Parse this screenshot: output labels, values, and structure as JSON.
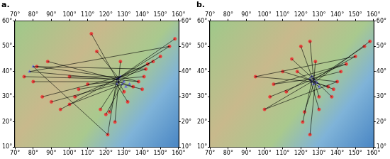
{
  "chart_data": [
    {
      "type": "scatter",
      "title": "a.",
      "grid": false,
      "xlim": [
        70,
        160
      ],
      "xticks": [
        {
          "value": 70,
          "label": "70°"
        },
        {
          "value": 80,
          "label": "80°"
        },
        {
          "value": 90,
          "label": "90°"
        },
        {
          "value": 100,
          "label": "100°"
        },
        {
          "value": 110,
          "label": "110°"
        },
        {
          "value": 120,
          "label": "120°"
        },
        {
          "value": 130,
          "label": "130°"
        },
        {
          "value": 140,
          "label": "140°"
        },
        {
          "value": 150,
          "label": "150°"
        },
        {
          "value": 160,
          "label": "160°"
        }
      ],
      "ylim": [
        10,
        60
      ],
      "yticks": [
        {
          "value": 10,
          "label": "10°"
        },
        {
          "value": 20,
          "label": "20°"
        },
        {
          "value": 30,
          "label": "30°"
        },
        {
          "value": 40,
          "label": "40°"
        },
        {
          "value": 50,
          "label": "50°"
        },
        {
          "value": 60,
          "label": "60°"
        }
      ],
      "series": [
        {
          "type": "line",
          "color": "#000000",
          "marker": "none",
          "line_style": "solid",
          "x": [
            75,
            126,
            null,
            80,
            127,
            null,
            85,
            128,
            null,
            90,
            126,
            null,
            95,
            127,
            null,
            100,
            129,
            null,
            103,
            126,
            null,
            105,
            130,
            null,
            110,
            127,
            null,
            100,
            128,
            null,
            88,
            126,
            null,
            82,
            127,
            null,
            117,
            126,
            null,
            120,
            129,
            null,
            122,
            127,
            null,
            130,
            126,
            null,
            135,
            127,
            null,
            138,
            128,
            null,
            141,
            126,
            null,
            142,
            127,
            null,
            143,
            128,
            null,
            146,
            126,
            null,
            150,
            127,
            null,
            155,
            126,
            null,
            158,
            128,
            null,
            140,
            129,
            null,
            132,
            126,
            null,
            125,
            127,
            null,
            121,
            126,
            null,
            115,
            127,
            null,
            112,
            126,
            null,
            128,
            127,
            null,
            80,
            142,
            null,
            78,
            138,
            null,
            80,
            121,
            null,
            78,
            155
          ],
          "values": [
            38,
            37,
            null,
            36,
            36,
            null,
            30,
            38,
            null,
            28,
            35,
            null,
            25,
            37.5,
            null,
            27,
            35,
            null,
            30,
            37,
            null,
            33,
            36,
            null,
            35,
            36,
            null,
            38,
            38,
            null,
            44,
            37,
            null,
            42,
            37.5,
            null,
            25,
            35,
            null,
            23,
            35,
            null,
            24,
            36,
            null,
            32,
            37,
            null,
            34,
            36,
            null,
            36,
            38,
            null,
            38,
            37,
            null,
            41,
            37.5,
            null,
            43,
            38,
            null,
            44,
            37,
            null,
            46,
            36,
            null,
            50,
            37,
            null,
            53,
            38,
            null,
            33,
            35,
            null,
            28,
            35,
            null,
            20,
            36,
            null,
            15,
            37,
            null,
            48,
            37.5,
            null,
            55,
            37,
            null,
            44,
            36,
            null,
            42,
            41,
            null,
            40,
            36,
            null,
            42,
            15,
            null,
            40,
            50
          ]
        },
        {
          "type": "scatter",
          "color": "#e8413c",
          "marker": "circle",
          "x": [
            75,
            80,
            85,
            90,
            95,
            100,
            103,
            105,
            110,
            100,
            88,
            82,
            117,
            120,
            122,
            130,
            135,
            138,
            141,
            142,
            143,
            146,
            150,
            155,
            158,
            140,
            132,
            125,
            121,
            115,
            112,
            128
          ],
          "values": [
            38,
            36,
            30,
            28,
            25,
            27,
            30,
            33,
            35,
            38,
            44,
            42,
            25,
            23,
            24,
            32,
            34,
            36,
            38,
            41,
            43,
            44,
            46,
            50,
            53,
            33,
            28,
            20,
            15,
            48,
            55,
            44
          ]
        },
        {
          "type": "scatter",
          "color": "#6a6ae0",
          "marker": "triangle",
          "x": [
            80,
            78,
            126,
            127,
            128,
            129,
            126,
            127,
            130,
            131,
            133
          ],
          "values": [
            42,
            40,
            37,
            36,
            38,
            35,
            35,
            37.5,
            36,
            34,
            35
          ]
        }
      ]
    },
    {
      "type": "scatter",
      "title": "b.",
      "grid": false,
      "xlim": [
        70,
        160
      ],
      "xticks": [
        {
          "value": 70,
          "label": "70°"
        },
        {
          "value": 80,
          "label": "80°"
        },
        {
          "value": 90,
          "label": "90°"
        },
        {
          "value": 100,
          "label": "100°"
        },
        {
          "value": 110,
          "label": "110°"
        },
        {
          "value": 120,
          "label": "120°"
        },
        {
          "value": 130,
          "label": "130°"
        },
        {
          "value": 140,
          "label": "140°"
        },
        {
          "value": 150,
          "label": "150°"
        },
        {
          "value": 160,
          "label": "160°"
        }
      ],
      "ylim": [
        10,
        60
      ],
      "yticks": [
        {
          "value": 10,
          "label": "10°"
        },
        {
          "value": 20,
          "label": "20°"
        },
        {
          "value": 30,
          "label": "30°"
        },
        {
          "value": 40,
          "label": "40°"
        },
        {
          "value": 50,
          "label": "50°"
        },
        {
          "value": 60,
          "label": "60°"
        }
      ],
      "series": [
        {
          "type": "line",
          "color": "#000000",
          "marker": "none",
          "line_style": "solid",
          "x": [
            100,
            126,
            null,
            103,
            127,
            null,
            105,
            125,
            null,
            110,
            128,
            null,
            115,
            127,
            null,
            120,
            126,
            null,
            125,
            127,
            null,
            95,
            126,
            null,
            122,
            127,
            null,
            121,
            126,
            null,
            125,
            128,
            null,
            130,
            127,
            null,
            135,
            126,
            null,
            140,
            127,
            null,
            142,
            125,
            null,
            145,
            126,
            null,
            150,
            127,
            null,
            155,
            126,
            null,
            158,
            128,
            null,
            138,
            129,
            null,
            128,
            127,
            null,
            118,
            130,
            null,
            112,
            126,
            null,
            130,
            125,
            null,
            137,
            127,
            null,
            100,
            140,
            null,
            105,
            145,
            null,
            95,
            150
          ],
          "values": [
            25,
            36,
            null,
            30,
            37,
            null,
            35,
            37,
            null,
            40,
            36,
            null,
            45,
            37,
            null,
            50,
            38,
            null,
            52,
            37,
            null,
            38,
            36,
            null,
            24,
            35,
            null,
            20,
            36,
            null,
            15,
            36,
            null,
            30,
            37,
            null,
            34,
            36,
            null,
            36,
            37,
            null,
            40,
            37,
            null,
            43,
            38,
            null,
            46,
            37,
            null,
            50,
            36,
            null,
            52,
            36,
            null,
            33,
            35.5,
            null,
            44,
            35,
            null,
            40,
            34,
            null,
            32,
            38,
            null,
            25,
            37,
            null,
            30,
            37,
            null,
            25,
            36,
            null,
            35,
            43,
            null,
            38,
            46
          ]
        },
        {
          "type": "scatter",
          "color": "#e8413c",
          "marker": "circle",
          "x": [
            100,
            103,
            105,
            110,
            115,
            120,
            125,
            95,
            122,
            121,
            125,
            130,
            135,
            140,
            142,
            145,
            150,
            155,
            158,
            138,
            128,
            118,
            112,
            130,
            137
          ],
          "values": [
            25,
            30,
            35,
            40,
            45,
            50,
            52,
            38,
            24,
            20,
            15,
            30,
            34,
            36,
            40,
            43,
            46,
            50,
            52,
            33,
            44,
            40,
            32,
            25,
            30
          ]
        },
        {
          "type": "scatter",
          "color": "#6a6ae0",
          "marker": "triangle",
          "x": [
            125,
            126,
            127,
            128,
            129,
            130,
            127,
            126
          ],
          "values": [
            37,
            36,
            37,
            36,
            35.5,
            34,
            35,
            38
          ]
        }
      ]
    }
  ]
}
